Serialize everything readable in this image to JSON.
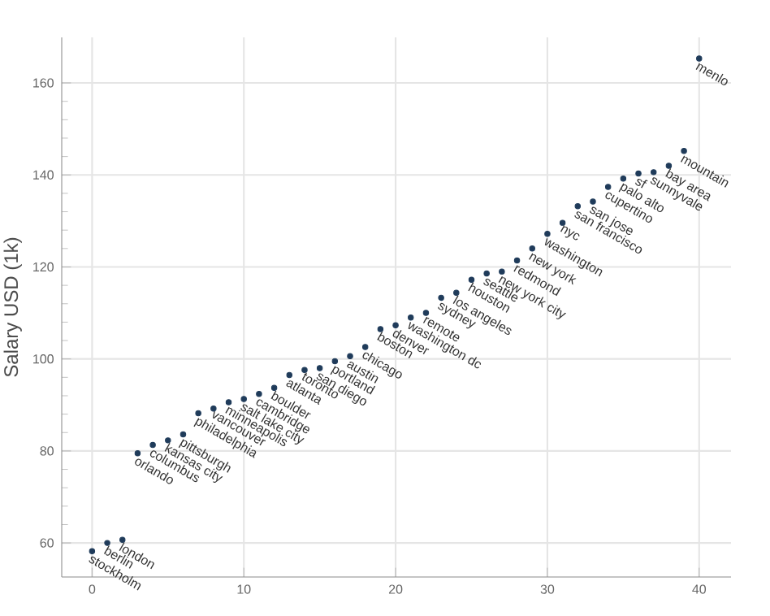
{
  "chart_data": {
    "type": "scatter",
    "ylabel": "Salary USD (1k)",
    "x": [
      0,
      1,
      2,
      3,
      4,
      5,
      6,
      7,
      8,
      9,
      10,
      11,
      12,
      13,
      14,
      15,
      16,
      17,
      18,
      19,
      20,
      21,
      22,
      23,
      24,
      25,
      26,
      27,
      28,
      29,
      30,
      31,
      32,
      33,
      34,
      35,
      36,
      37,
      38,
      39,
      40
    ],
    "series": [
      {
        "color": "#1f3b5a",
        "values": [
          58.2,
          60,
          60.7,
          79.5,
          81.3,
          82.3,
          83.6,
          88.2,
          89.2,
          90.6,
          91.3,
          92.4,
          93.7,
          96.5,
          97.6,
          98,
          99.5,
          100.6,
          102.6,
          106.5,
          107.3,
          109,
          110,
          113.3,
          114.4,
          117.2,
          118.6,
          119,
          121.4,
          124,
          127.2,
          129.6,
          133.2,
          134.2,
          137.4,
          139.2,
          140.3,
          140.6,
          142,
          145.2,
          165.3
        ]
      }
    ],
    "annotations": [
      {
        "text": "stockholm",
        "x": 0,
        "y": 58.2
      },
      {
        "text": "berlin",
        "x": 1,
        "y": 60
      },
      {
        "text": "london",
        "x": 2,
        "y": 60.7
      },
      {
        "text": "orlando",
        "x": 3,
        "y": 79.5
      },
      {
        "text": "columbus",
        "x": 4,
        "y": 81.3
      },
      {
        "text": "kansas city",
        "x": 5,
        "y": 82.3
      },
      {
        "text": "pittsburgh",
        "x": 6,
        "y": 83.6
      },
      {
        "text": "philadelphia",
        "x": 7,
        "y": 88.2
      },
      {
        "text": "vancouver",
        "x": 8,
        "y": 89.2
      },
      {
        "text": "minneapolis",
        "x": 9,
        "y": 90.6
      },
      {
        "text": "salt lake city",
        "x": 10,
        "y": 91.3
      },
      {
        "text": "cambridge",
        "x": 11,
        "y": 92.4
      },
      {
        "text": "boulder",
        "x": 12,
        "y": 93.7
      },
      {
        "text": "atlanta",
        "x": 13,
        "y": 96.5
      },
      {
        "text": "toronto",
        "x": 14,
        "y": 97.6
      },
      {
        "text": "san diego",
        "x": 15,
        "y": 98
      },
      {
        "text": "portland",
        "x": 16,
        "y": 99.5
      },
      {
        "text": "austin",
        "x": 17,
        "y": 100.6
      },
      {
        "text": "chicago",
        "x": 18,
        "y": 102.6
      },
      {
        "text": "boston",
        "x": 19,
        "y": 106.5
      },
      {
        "text": "denver",
        "x": 20,
        "y": 107.3
      },
      {
        "text": "washington dc",
        "x": 21,
        "y": 109
      },
      {
        "text": "remote",
        "x": 22,
        "y": 110
      },
      {
        "text": "sydney",
        "x": 23,
        "y": 113.3
      },
      {
        "text": "los angeles",
        "x": 24,
        "y": 114.4
      },
      {
        "text": "houston",
        "x": 25,
        "y": 117.2
      },
      {
        "text": "seattle",
        "x": 26,
        "y": 118.6
      },
      {
        "text": "new york city",
        "x": 27,
        "y": 119
      },
      {
        "text": "redmond",
        "x": 28,
        "y": 121.4
      },
      {
        "text": "new york",
        "x": 29,
        "y": 124
      },
      {
        "text": "washington",
        "x": 30,
        "y": 127.2
      },
      {
        "text": "nyc",
        "x": 31,
        "y": 129.6
      },
      {
        "text": "san francisco",
        "x": 32,
        "y": 133.2
      },
      {
        "text": "san jose",
        "x": 33,
        "y": 134.2
      },
      {
        "text": "cupertino",
        "x": 34,
        "y": 137.4
      },
      {
        "text": "palo alto",
        "x": 35,
        "y": 139.2
      },
      {
        "text": "sf",
        "x": 36,
        "y": 140.3
      },
      {
        "text": "sunnyvale",
        "x": 37,
        "y": 140.6
      },
      {
        "text": "bay area",
        "x": 38,
        "y": 142
      },
      {
        "text": "mountain",
        "x": 39,
        "y": 145.2
      },
      {
        "text": "menlo",
        "x": 40,
        "y": 165.3
      }
    ],
    "xlim": [
      -2,
      42.1
    ],
    "ylim": [
      52.6,
      169.9
    ],
    "xticks": [
      0,
      10,
      20,
      30,
      40
    ],
    "yticks": [
      60,
      80,
      100,
      120,
      140,
      160
    ],
    "grid": true,
    "marker": "circle"
  }
}
